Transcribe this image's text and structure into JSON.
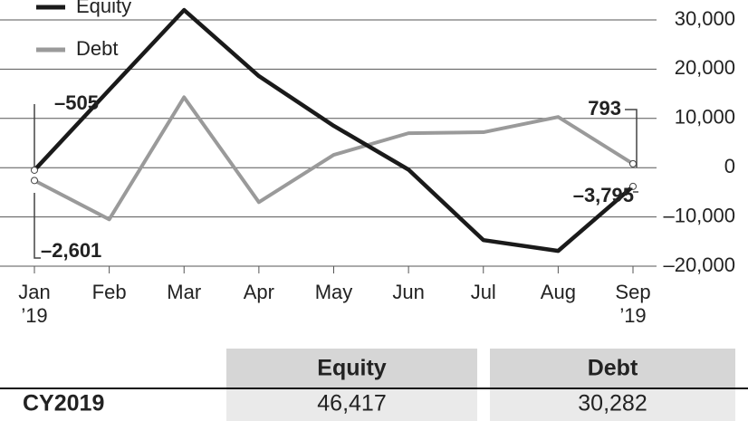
{
  "chart_data": {
    "type": "line",
    "categories": [
      "Jan\n’19",
      "Feb",
      "Mar",
      "Apr",
      "May",
      "Jun",
      "Jul",
      "Aug",
      "Sep\n’19"
    ],
    "series": [
      {
        "name": "Equity",
        "color": "#1a1a1a",
        "values": [
          -505,
          15800,
          32000,
          18600,
          8500,
          -400,
          -14700,
          -16900,
          -3795
        ],
        "value_labels": [
          "–505",
          null,
          null,
          null,
          null,
          null,
          null,
          null,
          "–3,795"
        ]
      },
      {
        "name": "Debt",
        "color": "#9a9a9a",
        "values": [
          -2601,
          -10500,
          14300,
          -7000,
          2600,
          7000,
          7200,
          10300,
          793
        ],
        "value_labels": [
          "–2,601",
          null,
          null,
          null,
          null,
          null,
          null,
          null,
          "793"
        ]
      }
    ],
    "ylim": [
      -20000,
      30000
    ],
    "yticks": [
      {
        "value": 30000,
        "label": "30,000"
      },
      {
        "value": 20000,
        "label": "20,000"
      },
      {
        "value": 10000,
        "label": "10,000"
      },
      0,
      {
        "value": -10000,
        "label": "–10,000"
      },
      {
        "value": -20000,
        "label": "–20,000"
      }
    ],
    "grid": true,
    "legend": "upper left"
  },
  "table": {
    "columns": [
      "Equity",
      "Debt"
    ],
    "rows": [
      [
        "CY2019",
        "46,417",
        "30,282"
      ]
    ]
  }
}
